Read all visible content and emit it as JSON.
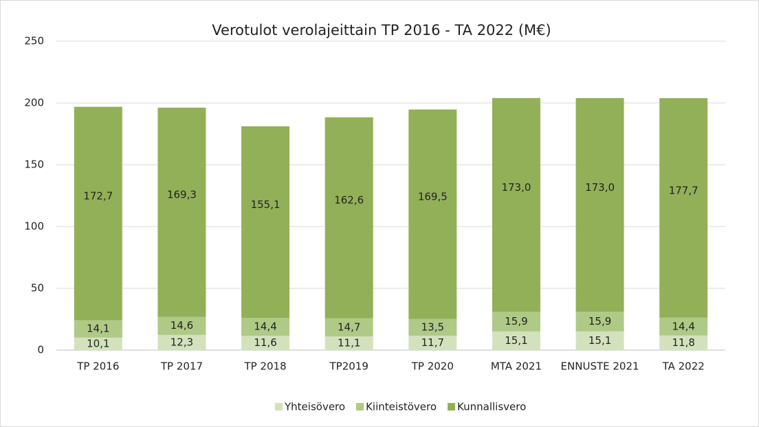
{
  "chart_data": {
    "type": "stacked_bar",
    "title": "Verotulot verolajeittain TP 2016 - TA 2022 (M€)",
    "categories": [
      "TP 2016",
      "TP 2017",
      "TP 2018",
      "TP2019",
      "TP 2020",
      "MTA 2021",
      "ENNUSTE 2021",
      "TA 2022"
    ],
    "series": [
      {
        "name": "Yhteisövero",
        "color": "#d3e2bd",
        "values": [
          10.1,
          12.3,
          11.6,
          11.1,
          11.7,
          15.1,
          15.1,
          11.8
        ],
        "value_labels": [
          "10,1",
          "12,3",
          "11,6",
          "11,1",
          "11,7",
          "15,1",
          "15,1",
          "11,8"
        ]
      },
      {
        "name": "Kiinteistövero",
        "color": "#afc986",
        "values": [
          14.1,
          14.6,
          14.4,
          14.7,
          13.5,
          15.9,
          15.9,
          14.4
        ],
        "value_labels": [
          "14,1",
          "14,6",
          "14,4",
          "14,7",
          "13,5",
          "15,9",
          "15,9",
          "14,4"
        ]
      },
      {
        "name": "Kunnallisvero",
        "color": "#92b058",
        "values": [
          172.7,
          169.3,
          155.1,
          162.6,
          169.5,
          173.0,
          173.0,
          177.7
        ],
        "value_labels": [
          "172,7",
          "169,3",
          "155,1",
          "162,6",
          "169,5",
          "173,0",
          "173,0",
          "177,7"
        ]
      }
    ],
    "ylim": [
      0,
      250
    ],
    "yticks": [
      0,
      50,
      100,
      150,
      200,
      250
    ],
    "grid": true,
    "legend": "bottom"
  }
}
